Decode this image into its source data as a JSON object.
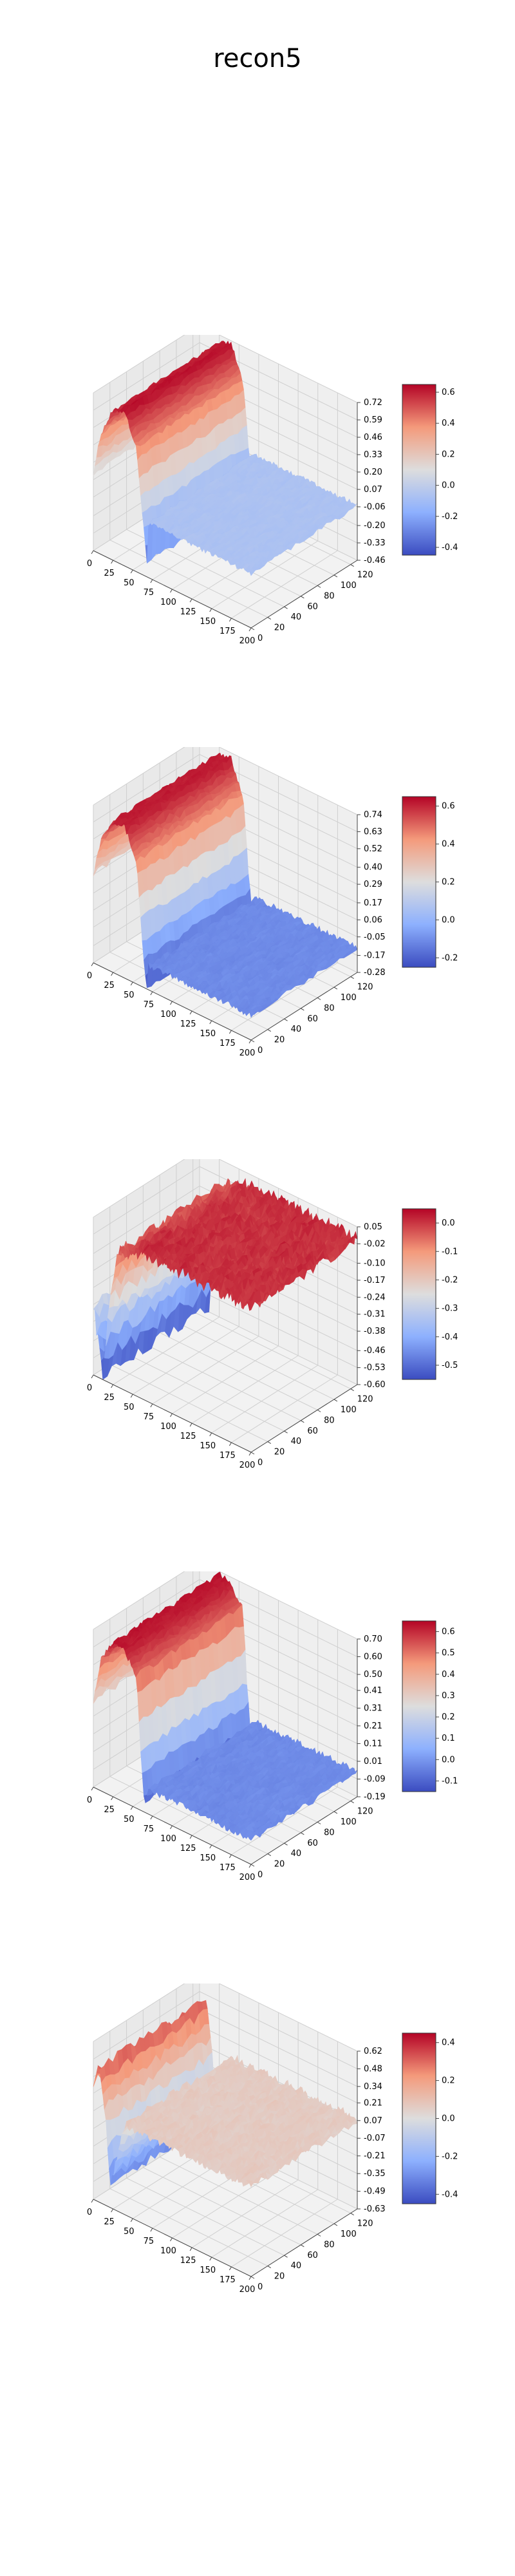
{
  "title": "recon5",
  "chart_data": [
    {
      "type": "surface",
      "colormap": "coolwarm",
      "x_ticks": [
        "0",
        "25",
        "50",
        "75",
        "100",
        "125",
        "150",
        "175",
        "200"
      ],
      "y_ticks": [
        "0",
        "20",
        "40",
        "60",
        "80",
        "100",
        "120"
      ],
      "z_ticks": [
        "0.72",
        "0.59",
        "0.46",
        "0.33",
        "0.20",
        "0.07",
        "-0.06",
        "-0.20",
        "-0.33",
        "-0.46"
      ],
      "colorbar_ticks": [
        "0.6",
        "0.4",
        "0.2",
        "0.0",
        "-0.2",
        "-0.4"
      ],
      "zlim": [
        -0.46,
        0.72
      ],
      "profile": {
        "x": [
          0,
          10,
          25,
          40,
          55,
          62,
          68,
          70,
          200
        ],
        "z": [
          0.12,
          0.45,
          0.66,
          0.7,
          0.45,
          0.0,
          -0.35,
          -0.05,
          -0.05
        ]
      },
      "noise": 0.02
    },
    {
      "type": "surface",
      "colormap": "coolwarm",
      "x_ticks": [
        "0",
        "25",
        "50",
        "75",
        "100",
        "125",
        "150",
        "175",
        "200"
      ],
      "y_ticks": [
        "0",
        "20",
        "40",
        "60",
        "80",
        "100",
        "120"
      ],
      "z_ticks": [
        "0.74",
        "0.63",
        "0.52",
        "0.40",
        "0.29",
        "0.17",
        "0.06",
        "-0.05",
        "-0.17",
        "-0.28"
      ],
      "colorbar_ticks": [
        "0.6",
        "0.4",
        "0.2",
        "0.0",
        "-0.2"
      ],
      "zlim": [
        -0.28,
        0.74
      ],
      "profile": {
        "x": [
          0,
          10,
          25,
          40,
          55,
          63,
          68,
          70,
          200
        ],
        "z": [
          0.3,
          0.55,
          0.7,
          0.7,
          0.5,
          -0.05,
          -0.28,
          -0.12,
          -0.12
        ]
      },
      "noise": 0.02
    },
    {
      "type": "surface",
      "colormap": "coolwarm",
      "x_ticks": [
        "0",
        "25",
        "50",
        "75",
        "100",
        "125",
        "150",
        "175",
        "200"
      ],
      "y_ticks": [
        "0",
        "20",
        "40",
        "60",
        "80",
        "100",
        "120"
      ],
      "z_ticks": [
        "0.05",
        "-0.02",
        "-0.10",
        "-0.17",
        "-0.24",
        "-0.31",
        "-0.38",
        "-0.46",
        "-0.53",
        "-0.60"
      ],
      "colorbar_ticks": [
        "0.0",
        "-0.1",
        "-0.2",
        "-0.3",
        "-0.4",
        "-0.5"
      ],
      "zlim": [
        -0.6,
        0.05
      ],
      "profile": {
        "x": [
          0,
          6,
          12,
          18,
          30,
          60,
          200
        ],
        "z": [
          -0.3,
          -0.45,
          -0.58,
          -0.35,
          -0.05,
          0.0,
          0.0
        ]
      },
      "noise": 0.03
    },
    {
      "type": "surface",
      "colormap": "coolwarm",
      "x_ticks": [
        "0",
        "25",
        "50",
        "75",
        "100",
        "125",
        "150",
        "175",
        "200"
      ],
      "y_ticks": [
        "0",
        "20",
        "40",
        "60",
        "80",
        "100",
        "120"
      ],
      "z_ticks": [
        "0.70",
        "0.60",
        "0.50",
        "0.41",
        "0.31",
        "0.21",
        "0.11",
        "0.01",
        "-0.09",
        "-0.19"
      ],
      "colorbar_ticks": [
        "0.6",
        "0.5",
        "0.4",
        "0.3",
        "0.2",
        "0.1",
        "0.0",
        "-0.1"
      ],
      "zlim": [
        -0.19,
        0.7
      ],
      "profile": {
        "x": [
          0,
          10,
          25,
          40,
          55,
          60,
          65,
          70,
          200
        ],
        "z": [
          0.3,
          0.55,
          0.68,
          0.66,
          0.55,
          0.15,
          -0.15,
          -0.05,
          -0.05
        ]
      },
      "noise": 0.02
    },
    {
      "type": "surface",
      "colormap": "coolwarm",
      "x_ticks": [
        "0",
        "25",
        "50",
        "75",
        "100",
        "125",
        "150",
        "175",
        "200"
      ],
      "y_ticks": [
        "0",
        "20",
        "40",
        "60",
        "80",
        "100",
        "120"
      ],
      "z_ticks": [
        "0.62",
        "0.48",
        "0.34",
        "0.21",
        "0.07",
        "-0.07",
        "-0.21",
        "-0.35",
        "-0.49",
        "-0.63"
      ],
      "colorbar_ticks": [
        "0.4",
        "0.2",
        "0.0",
        "-0.2",
        "-0.4"
      ],
      "zlim": [
        -0.63,
        0.62
      ],
      "profile": {
        "x": [
          0,
          8,
          15,
          22,
          30,
          40,
          200
        ],
        "z": [
          0.3,
          0.45,
          0.1,
          -0.45,
          -0.2,
          0.08,
          0.08
        ]
      },
      "noise": 0.04
    }
  ]
}
